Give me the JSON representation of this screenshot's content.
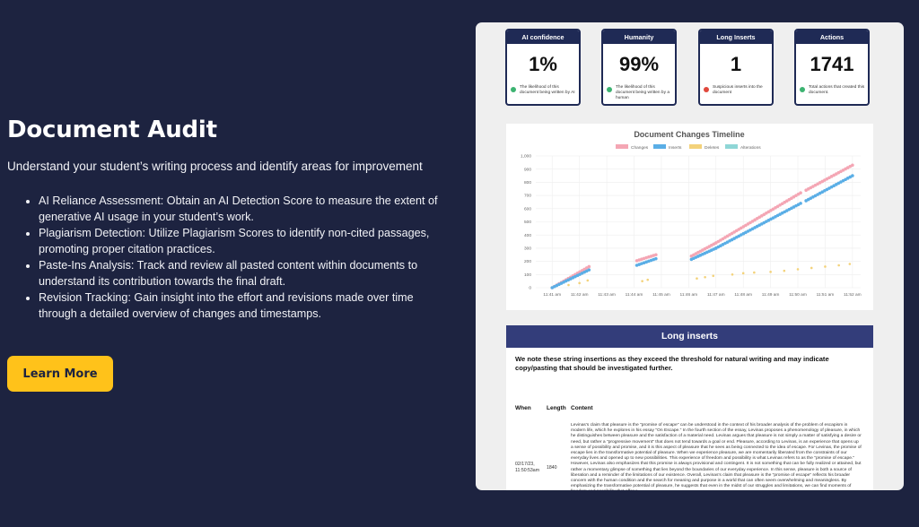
{
  "hero": {
    "title": "Document Audit",
    "subtitle": "Understand your student’s writing process and identify areas for improvement",
    "bullets": [
      "AI Reliance Assessment: Obtain an AI Detection Score to measure the extent of generative AI usage in your student’s work.",
      "Plagiarism Detection: Utilize Plagiarism Scores to identify non-cited passages, promoting proper citation practices.",
      "Paste-Ins Analysis: Track and review all pasted content within documents to understand its contribution towards the final draft.",
      "Revision Tracking: Gain insight into the effort and revisions made over time through a detailed overview of changes and timestamps."
    ],
    "button_label": "Learn More"
  },
  "cards": [
    {
      "title": "AI confidence",
      "value": "1%",
      "desc": "The likelihood of this document being written by AI",
      "dot_color": "#3cb371"
    },
    {
      "title": "Humanity",
      "value": "99%",
      "desc": "The likelihood of this document being written by a human",
      "dot_color": "#3cb371"
    },
    {
      "title": "Long Inserts",
      "value": "1",
      "desc": "Suspicious inserts into the document",
      "dot_color": "#e0483c"
    },
    {
      "title": "Actions",
      "value": "1741",
      "desc": "Total actions that created this document.",
      "dot_color": "#3cb371"
    }
  ],
  "chart_data": {
    "type": "scatter",
    "title": "Document Changes Timeline",
    "legend_position": "top",
    "grid": true,
    "series": [
      {
        "name": "Changes",
        "color": "#f4a6b4"
      },
      {
        "name": "Inserts",
        "color": "#5aaee6"
      },
      {
        "name": "Deletes",
        "color": "#f3d27a"
      },
      {
        "name": "Alterations",
        "color": "#8fd6d6"
      }
    ],
    "x_ticks": [
      "11:41 am",
      "11:42 am",
      "11:43 am",
      "11:44 am",
      "11:45 am",
      "11:46 am",
      "11:47 am",
      "11:48 am",
      "11:49 am",
      "11:50 am",
      "11:51 am",
      "11:52 am"
    ],
    "y_ticks": [
      "0",
      "100",
      "200",
      "300",
      "400",
      "500",
      "600",
      "700",
      "800",
      "900",
      "1,000"
    ],
    "ylim": [
      0,
      1000
    ],
    "segments": [
      {
        "x_start": 0.0,
        "x_end": 1.35,
        "changes_start": 0,
        "changes_end": 160,
        "inserts_start": 0,
        "inserts_end": 135
      },
      {
        "x_start": 3.1,
        "x_end": 3.8,
        "changes_start": 205,
        "changes_end": 250,
        "inserts_start": 170,
        "inserts_end": 220
      },
      {
        "x_start": 5.1,
        "x_end": 6.0,
        "changes_start": 240,
        "changes_end": 340,
        "inserts_start": 215,
        "inserts_end": 300
      },
      {
        "x_start": 6.0,
        "x_end": 9.1,
        "changes_start": 340,
        "changes_end": 720,
        "inserts_start": 300,
        "inserts_end": 640
      },
      {
        "x_start": 9.3,
        "x_end": 11.0,
        "changes_start": 740,
        "changes_end": 930,
        "inserts_start": 660,
        "inserts_end": 850
      }
    ],
    "deletes_points": [
      {
        "x": 0.6,
        "y": 20
      },
      {
        "x": 1.0,
        "y": 35
      },
      {
        "x": 1.3,
        "y": 55
      },
      {
        "x": 3.3,
        "y": 50
      },
      {
        "x": 3.5,
        "y": 60
      },
      {
        "x": 5.3,
        "y": 70
      },
      {
        "x": 5.6,
        "y": 80
      },
      {
        "x": 5.9,
        "y": 90
      },
      {
        "x": 6.6,
        "y": 100
      },
      {
        "x": 7.0,
        "y": 110
      },
      {
        "x": 7.4,
        "y": 115
      },
      {
        "x": 8.0,
        "y": 120
      },
      {
        "x": 8.5,
        "y": 128
      },
      {
        "x": 9.0,
        "y": 140
      },
      {
        "x": 9.5,
        "y": 150
      },
      {
        "x": 10.0,
        "y": 160
      },
      {
        "x": 10.5,
        "y": 170
      },
      {
        "x": 10.9,
        "y": 180
      }
    ]
  },
  "long_inserts": {
    "title": "Long inserts",
    "note": "We note these string insertions as they exceed the threshold for natural writing and may indicate copy/pasting that should be investigated further.",
    "columns": [
      "When",
      "Length",
      "Content"
    ],
    "row": {
      "when": "02/17/23, 11:50:53am",
      "length": "1840",
      "content": "Levinas's claim that pleasure is the \"promise of escape\" can be understood in the context of his broader analysis of the problem of escapism in modern life, which he explores in his essay \"On Escape.\" In the fourth section of the essay, Levinas proposes a phenomenology of pleasure, in which he distinguishes between pleasure and the satisfaction of a material need. Levinas argues that pleasure is not simply a matter of satisfying a desire or need, but rather a \"progressive movement\" that does not tend towards a goal or end. Pleasure, according to Levinas, is an experience that opens up a sense of possibility and promise, and it is this aspect of pleasure that he sees as being connected to the idea of escape. For Levinas, the promise of escape lies in the transformative potential of pleasure. When we experience pleasure, we are momentarily liberated from the constraints of our everyday lives and opened up to new possibilities. This experience of freedom and possibility is what Levinas refers to as the \"promise of escape.\" However, Levinas also emphasizes that this promise is always provisional and contingent. It is not something that can be fully realized or attained, but rather a momentary glimpse of something that lies beyond the boundaries of our everyday experience. In this sense, pleasure is both a source of liberation and a reminder of the limitations of our existence. Overall, Levinas's claim that pleasure is the \"promise of escape\" reflects his broader concern with the human condition and the search for meaning and purpose in a world that can often seem overwhelming and meaningless. By emphasizing the transformative potential of pleasure, he suggests that even in the midst of our struggles and limitations, we can find moments of freedom and possibility that offer a"
    }
  }
}
